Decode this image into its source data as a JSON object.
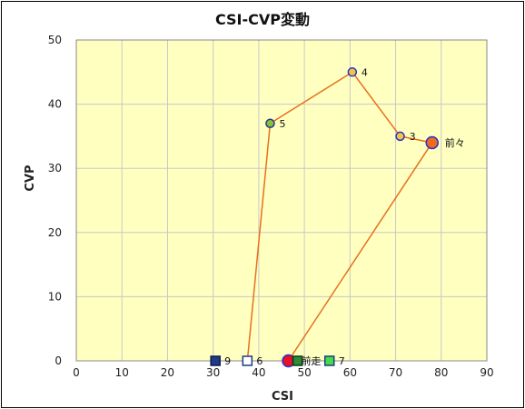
{
  "chart_data": {
    "type": "scatter",
    "title": "CSI-CVP変動",
    "xlabel": "CSI",
    "ylabel": "CVP",
    "xlim": [
      0,
      90
    ],
    "ylim": [
      0,
      50
    ],
    "x_ticks": [
      0,
      10,
      20,
      30,
      40,
      50,
      60,
      70,
      80,
      90
    ],
    "y_ticks": [
      0,
      10,
      20,
      30,
      40,
      50
    ],
    "x_tick_labels": [
      "0",
      "10",
      "20",
      "30",
      "40",
      "50",
      "60",
      "70",
      "80",
      "90"
    ],
    "y_tick_labels": [
      "0",
      "10",
      "20",
      "30",
      "40",
      "50"
    ],
    "grid": true,
    "colors": {
      "plot_background": "#FFFFC0",
      "grid": "#C8C8C8",
      "path_line": "#E8701E",
      "marker_outline": "#2233CC"
    },
    "path": [
      {
        "x": 37.5,
        "y": 0
      },
      {
        "x": 42.5,
        "y": 37
      },
      {
        "x": 60.5,
        "y": 45
      },
      {
        "x": 71,
        "y": 35
      },
      {
        "x": 78,
        "y": 34
      },
      {
        "x": 46.5,
        "y": 0
      }
    ],
    "points": [
      {
        "label": "9",
        "x": 30.5,
        "y": 0,
        "shape": "square",
        "fill": "#1F3A8A",
        "stroke": "#0B1A4A"
      },
      {
        "label": "6",
        "x": 37.5,
        "y": 0,
        "shape": "square",
        "fill": "#FFFFFF",
        "stroke": "#1F3A8A"
      },
      {
        "label": "5",
        "x": 42.5,
        "y": 37,
        "shape": "circle",
        "fill": "#8BBF3A",
        "stroke": "#1F3A8A"
      },
      {
        "label": "4",
        "x": 60.5,
        "y": 45,
        "shape": "circle",
        "fill": "#F6C244",
        "stroke": "#2233CC"
      },
      {
        "label": "3",
        "x": 71,
        "y": 35,
        "shape": "circle",
        "fill": "#F6C244",
        "stroke": "#2233CC"
      },
      {
        "label": "前々",
        "x": 78,
        "y": 34,
        "shape": "circle-large",
        "fill": "#F06A1F",
        "stroke": "#2233CC"
      },
      {
        "label": "前走",
        "x": 46.5,
        "y": 0,
        "shape": "circle-large",
        "fill": "#E8102A",
        "stroke": "#2233CC"
      },
      {
        "label": "",
        "x": 48.5,
        "y": 0,
        "shape": "square",
        "fill": "#2E8B3A",
        "stroke": "#0B3A12"
      },
      {
        "label": "7",
        "x": 55.5,
        "y": 0,
        "shape": "square",
        "fill": "#44DD44",
        "stroke": "#1F3A8A"
      }
    ]
  }
}
